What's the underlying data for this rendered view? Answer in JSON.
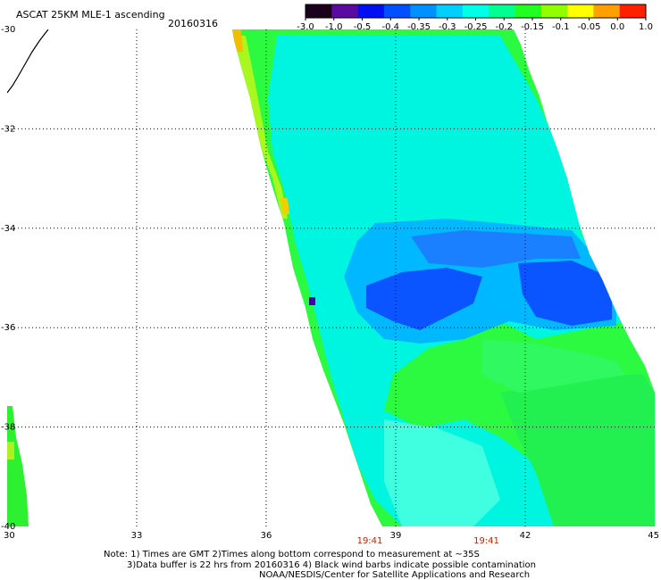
{
  "header": {
    "title": "ASCAT 25KM MLE-1 ascending",
    "date": "20160316"
  },
  "colorbar": {
    "labels": [
      "-3.0",
      "-1.0",
      "-0.5",
      "-0.4",
      "-0.35",
      "-0.3",
      "-0.25",
      "-0.2",
      "-0.15",
      "-0.1",
      "-0.05",
      "0.0",
      "1.0"
    ],
    "colors": [
      "#1a001a",
      "#5a0aa0",
      "#0010f0",
      "#0050ff",
      "#0090ff",
      "#00d0ff",
      "#00ffe6",
      "#00ff90",
      "#20ff20",
      "#90ff00",
      "#ffff00",
      "#ffa000",
      "#ff2000"
    ]
  },
  "axes": {
    "x_ticks": [
      "30",
      "33",
      "36",
      "39",
      "42",
      "45"
    ],
    "y_ticks": [
      "-30",
      "-32",
      "-34",
      "-36",
      "-38",
      "-40"
    ],
    "lon_range": [
      30,
      45
    ],
    "lat_range": [
      -40,
      -30
    ]
  },
  "times": [
    {
      "label": "19:41",
      "lon": 38.4
    },
    {
      "label": "19:41",
      "lon": 41.1
    }
  ],
  "notes": {
    "line1": "Note: 1) Times are GMT 2)Times along bottom correspond to measurement at ~35S",
    "line2": "3)Data buffer is 22 hrs from 20160316 4) Black wind barbs indicate possible contamination",
    "line3": "NOAA/NESDIS/Center for Satellite Applications and Research"
  }
}
